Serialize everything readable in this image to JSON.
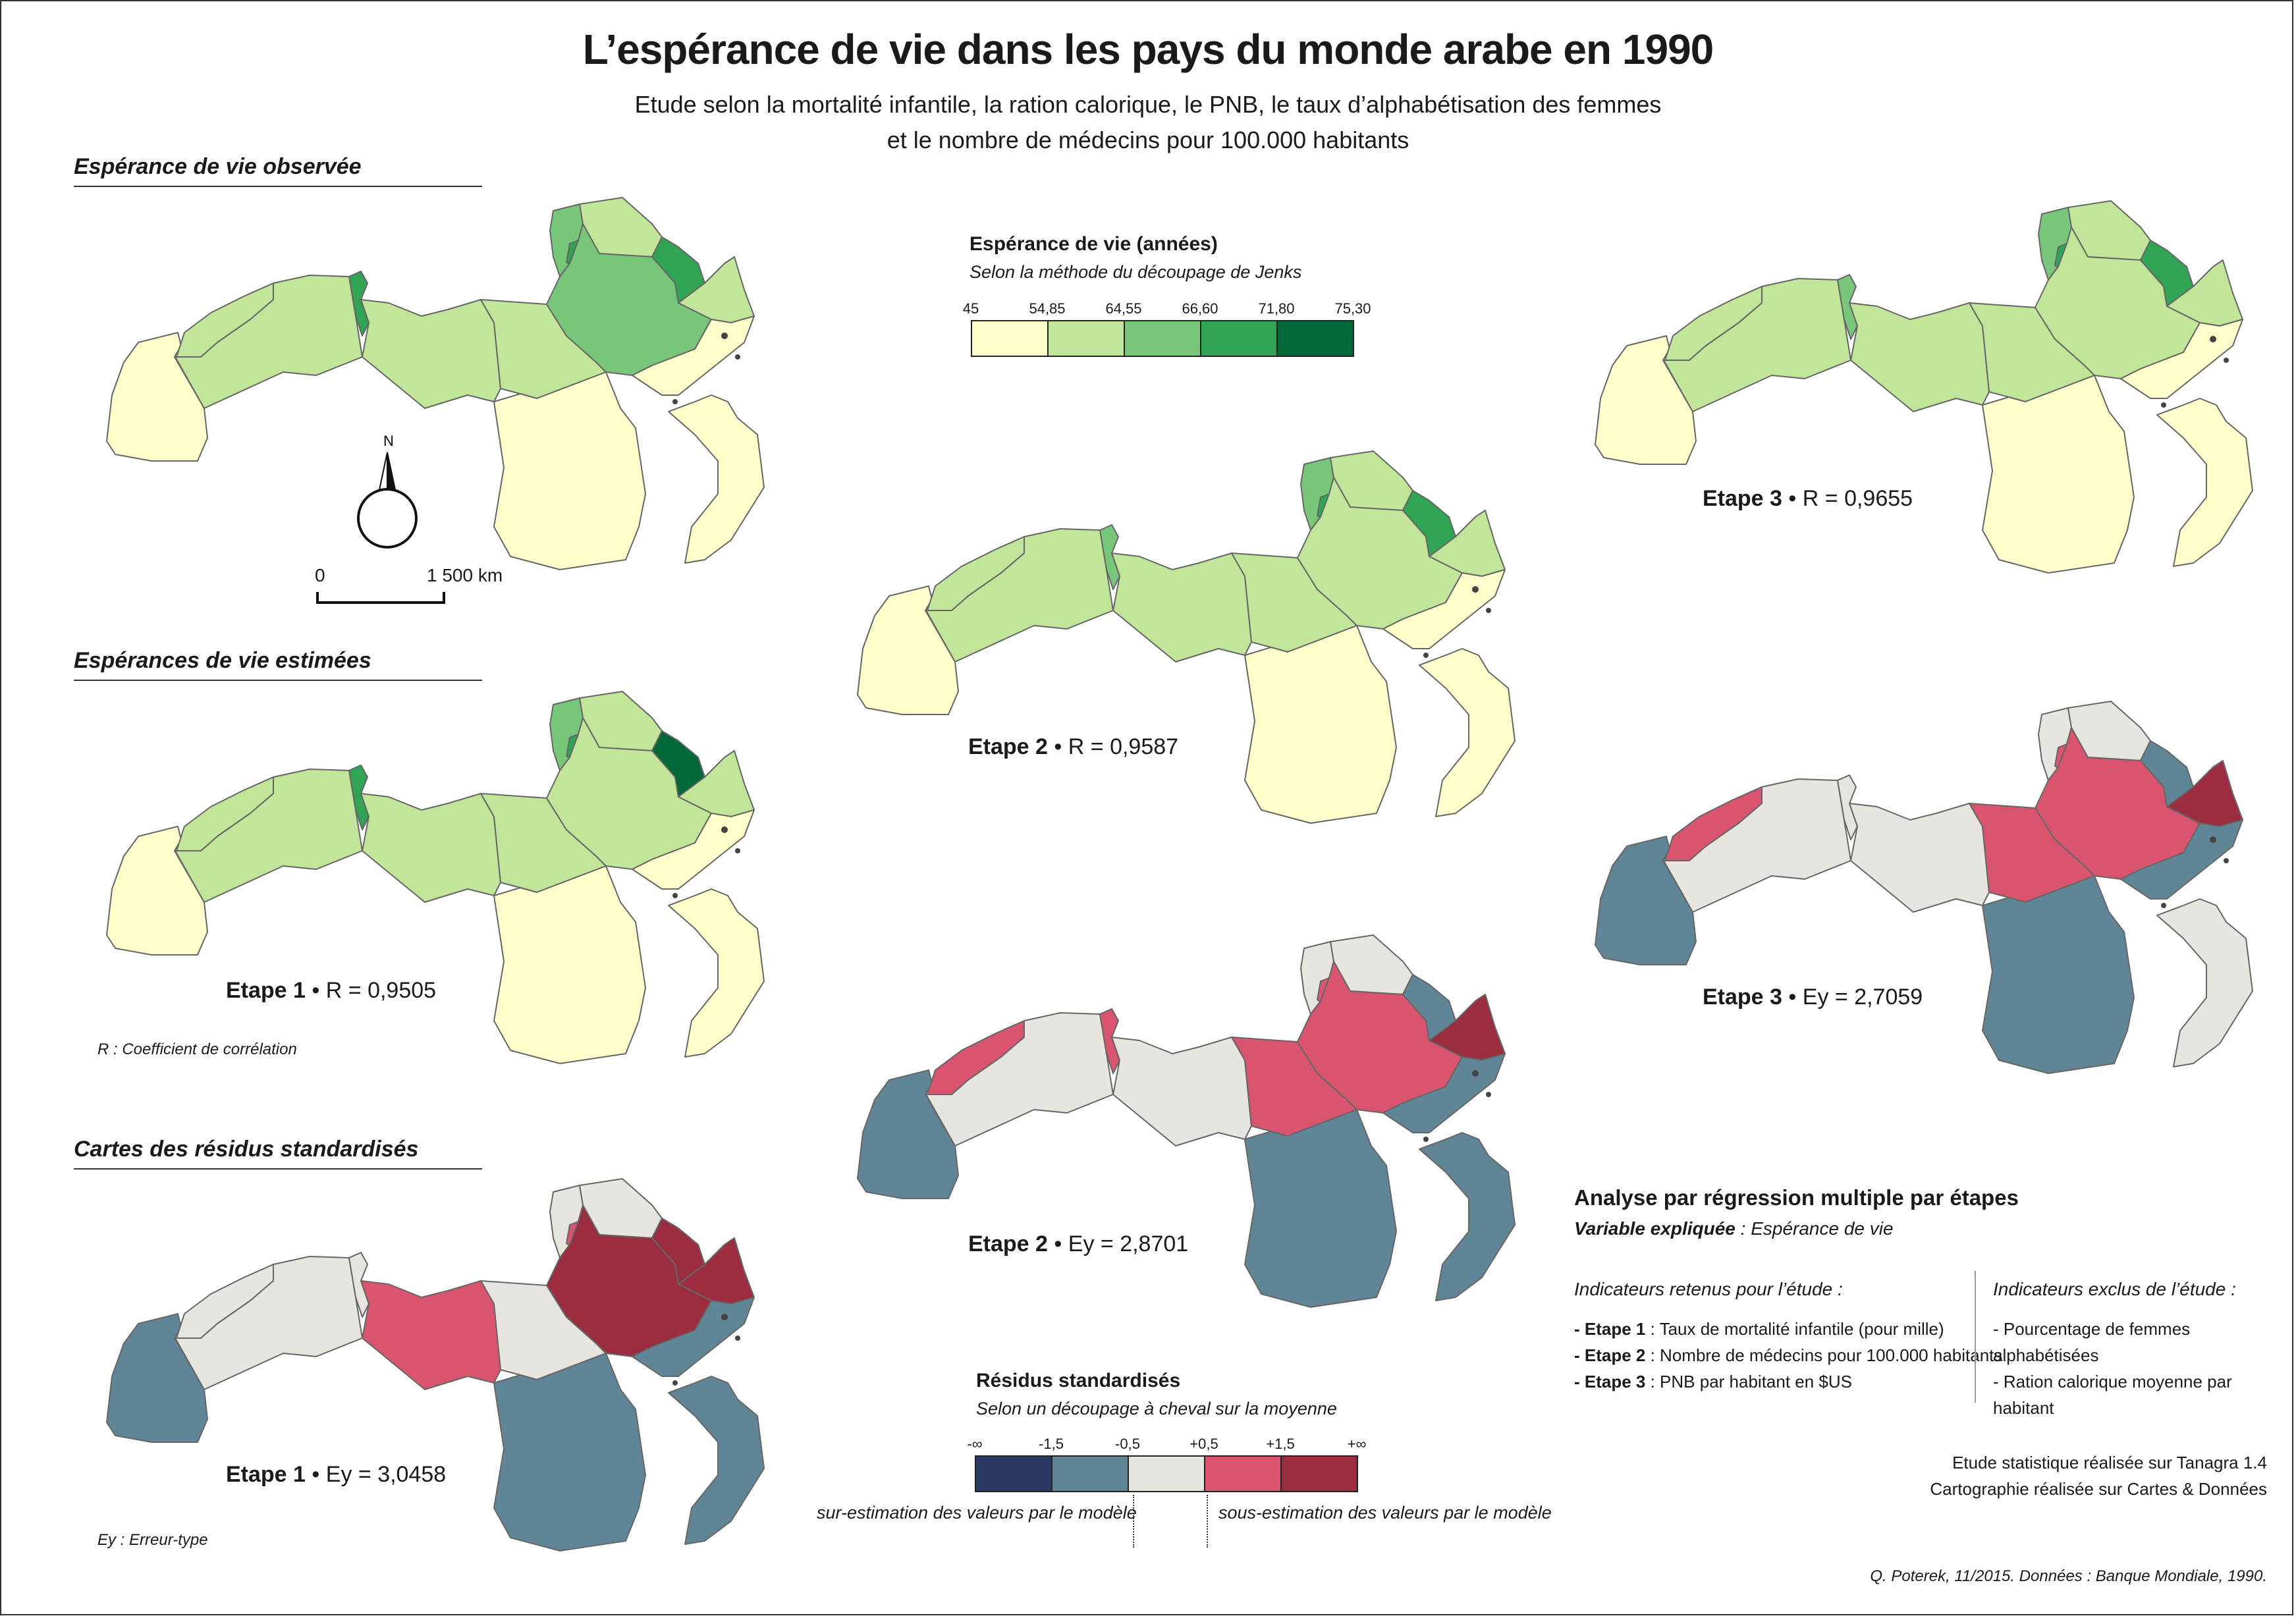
{
  "title": "L’espérance de vie dans les pays du monde arabe en 1990",
  "subtitle_line1": "Etude selon la mortalité infantile, la ration calorique, le PNB, le taux d’alphabétisation des femmes",
  "subtitle_line2": "et le nombre de médecins pour 100.000 habitants",
  "sections": {
    "observed": "Espérance de vie observée",
    "estimated": "Espérances de vie estimées",
    "residuals": "Cartes des résidus standardisés"
  },
  "scale": {
    "zero": "0",
    "distance": "1 500 km",
    "north": "N"
  },
  "notes": {
    "r_note": "R : Coefficient de corrélation",
    "ey_note": "Ey : Erreur-type"
  },
  "captions": {
    "e1_r_step": "Etape 1",
    "e1_r_val": "R = 0,9505",
    "e2_r_step": "Etape 2",
    "e2_r_val": "R = 0,9587",
    "e3_r_step": "Etape 3",
    "e3_r_val": "R = 0,9655",
    "e1_ey_step": "Etape 1",
    "e1_ey_val": "Ey = 3,0458",
    "e2_ey_step": "Etape 2",
    "e2_ey_val": "Ey = 2,8701",
    "e3_ey_step": "Etape 3",
    "e3_ey_val": "Ey = 2,7059",
    "bullet": "•"
  },
  "legend_life": {
    "title": "Espérance de vie (années)",
    "subtitle": "Selon la méthode du découpage de Jenks",
    "breaks": [
      "45",
      "54,85",
      "64,55",
      "66,60",
      "71,80",
      "75,30"
    ],
    "colors": [
      "#ffffcc",
      "#c2e699",
      "#78c679",
      "#31a354",
      "#006837"
    ]
  },
  "legend_resid": {
    "title": "Résidus standardisés",
    "subtitle": "Selon un découpage à cheval sur la moyenne",
    "breaks": [
      "-∞",
      "-1,5",
      "-0,5",
      "+0,5",
      "+1,5",
      "+∞"
    ],
    "colors": [
      "#2b3a63",
      "#5f8596",
      "#e8e4df",
      "#d9546e",
      "#9b2d40"
    ],
    "over_label": "sur-estimation des valeurs par le modèle",
    "under_label": "sous-estimation des valeurs par le modèle"
  },
  "analysis": {
    "title": "Analyse par régression multiple par étapes",
    "var_label": "Variable expliquée",
    "var_value": " : Espérance de vie",
    "kept_title": "Indicateurs retenus pour l’étude :",
    "kept": [
      {
        "step": "- Etape 1",
        "text": " : Taux de mortalité infantile (pour mille)"
      },
      {
        "step": "- Etape 2",
        "text": " : Nombre de médecins pour 100.000 habitants"
      },
      {
        "step": "- Etape 3",
        "text": " : PNB par habitant en $US"
      }
    ],
    "excluded_title": "Indicateurs exclus de l’étude :",
    "excluded": [
      "- Pourcentage de femmes alphabétisées",
      "- Ration calorique moyenne par habitant"
    ]
  },
  "credits": {
    "line1": "Etude statistique réalisée sur Tanagra 1.4",
    "line2": "Cartographie réalisée sur Cartes & Données",
    "source": "Q. Poterek, 11/2015. Données : Banque Mondiale, 1990."
  },
  "maps": [
    {
      "id": "observed",
      "fills": {
        "mauritania": "#ffffcc",
        "morocco": "#c2e699",
        "algeria": "#c2e699",
        "tunisia": "#31a354",
        "libya": "#c2e699",
        "egypt": "#c2e699",
        "sudan": "#ffffcc",
        "levant": "#78c679",
        "lebanon": "#31a354",
        "iraq": "#c2e699",
        "saudi": "#78c679",
        "gulf": "#31a354",
        "oman": "#c2e699",
        "yemen": "#ffffcc",
        "somalia": "#ffffcc"
      }
    },
    {
      "id": "est1",
      "fills": {
        "mauritania": "#ffffcc",
        "morocco": "#c2e699",
        "algeria": "#c2e699",
        "tunisia": "#31a354",
        "libya": "#c2e699",
        "egypt": "#c2e699",
        "sudan": "#ffffcc",
        "levant": "#78c679",
        "lebanon": "#31a354",
        "iraq": "#c2e699",
        "saudi": "#c2e699",
        "gulf": "#006837",
        "oman": "#c2e699",
        "yemen": "#ffffcc",
        "somalia": "#ffffcc"
      }
    },
    {
      "id": "est2",
      "fills": {
        "mauritania": "#ffffcc",
        "morocco": "#c2e699",
        "algeria": "#c2e699",
        "tunisia": "#78c679",
        "libya": "#c2e699",
        "egypt": "#c2e699",
        "sudan": "#ffffcc",
        "levant": "#78c679",
        "lebanon": "#31a354",
        "iraq": "#c2e699",
        "saudi": "#c2e699",
        "gulf": "#31a354",
        "oman": "#c2e699",
        "yemen": "#ffffcc",
        "somalia": "#ffffcc"
      }
    },
    {
      "id": "est3",
      "fills": {
        "mauritania": "#ffffcc",
        "morocco": "#c2e699",
        "algeria": "#c2e699",
        "tunisia": "#78c679",
        "libya": "#c2e699",
        "egypt": "#c2e699",
        "sudan": "#ffffcc",
        "levant": "#78c679",
        "lebanon": "#31a354",
        "iraq": "#c2e699",
        "saudi": "#c2e699",
        "gulf": "#31a354",
        "oman": "#c2e699",
        "yemen": "#ffffcc",
        "somalia": "#ffffcc"
      }
    },
    {
      "id": "res1",
      "fills": {
        "mauritania": "#5f8596",
        "morocco": "#e8e4df",
        "algeria": "#e8e4df",
        "tunisia": "#e8e4df",
        "libya": "#d9546e",
        "egypt": "#e8e4df",
        "sudan": "#5f8596",
        "levant": "#e8e4df",
        "lebanon": "#d9546e",
        "iraq": "#e8e4df",
        "saudi": "#9b2d40",
        "gulf": "#9b2d40",
        "oman": "#9b2d40",
        "yemen": "#5f8596",
        "somalia": "#5f8596"
      }
    },
    {
      "id": "res2",
      "fills": {
        "mauritania": "#5f8596",
        "morocco": "#d9546e",
        "algeria": "#e8e4df",
        "tunisia": "#d9546e",
        "libya": "#e8e4df",
        "egypt": "#d9546e",
        "sudan": "#5f8596",
        "levant": "#e8e4df",
        "lebanon": "#d9546e",
        "iraq": "#e8e4df",
        "saudi": "#d9546e",
        "gulf": "#5f8596",
        "oman": "#9b2d40",
        "yemen": "#5f8596",
        "somalia": "#5f8596"
      }
    },
    {
      "id": "res3",
      "fills": {
        "mauritania": "#5f8596",
        "morocco": "#d9546e",
        "algeria": "#e8e4df",
        "tunisia": "#e8e4df",
        "libya": "#e8e4df",
        "egypt": "#d9546e",
        "sudan": "#5f8596",
        "levant": "#e8e4df",
        "lebanon": "#d9546e",
        "iraq": "#e8e4df",
        "saudi": "#d9546e",
        "gulf": "#5f8596",
        "oman": "#9b2d40",
        "yemen": "#5f8596",
        "somalia": "#e8e4df"
      }
    }
  ]
}
